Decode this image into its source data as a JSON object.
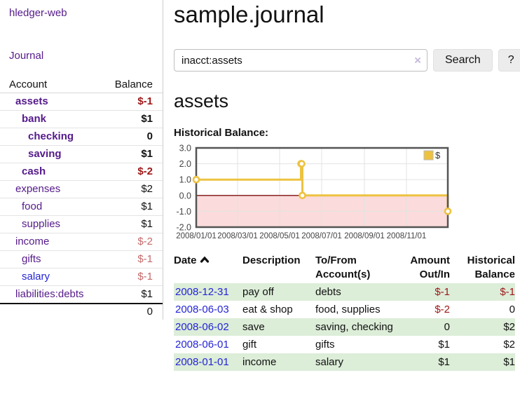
{
  "colors": {
    "link_purple": "#551a8b",
    "link_blue": "#2424d6",
    "negative_strong": "#9d1717",
    "negative_faded": "#c46a6a",
    "stripe_green": "#dcedd8",
    "chart_line": "#edc240",
    "chart_marker_fill": "#ffffff",
    "chart_negative_fill": "#fbdbdb",
    "chart_zero_line": "#7e1010",
    "chart_border": "#545454",
    "grid_line": "#e3e3e3",
    "axis_text": "#444444",
    "button_bg": "#ececec"
  },
  "sidebar": {
    "app_title": "hledger-web",
    "journal_link": "Journal",
    "accounts_table": {
      "headers": {
        "account": "Account",
        "balance": "Balance"
      },
      "rows": [
        {
          "name": "assets",
          "balance": "$-1",
          "depth": 1,
          "bold": true,
          "visited": true
        },
        {
          "name": "bank",
          "balance": "$1",
          "depth": 2,
          "bold": true,
          "visited": true
        },
        {
          "name": "checking",
          "balance": "0",
          "depth": 3,
          "bold": true,
          "visited": true
        },
        {
          "name": "saving",
          "balance": "$1",
          "depth": 3,
          "bold": true,
          "visited": true
        },
        {
          "name": "cash",
          "balance": "$-2",
          "depth": 2,
          "bold": true,
          "visited": true
        },
        {
          "name": "expenses",
          "balance": "$2",
          "depth": 1,
          "bold": false,
          "visited": true
        },
        {
          "name": "food",
          "balance": "$1",
          "depth": 2,
          "bold": false,
          "visited": true
        },
        {
          "name": "supplies",
          "balance": "$1",
          "depth": 2,
          "bold": false,
          "visited": true
        },
        {
          "name": "income",
          "balance": "$-2",
          "depth": 1,
          "bold": false,
          "visited": true
        },
        {
          "name": "gifts",
          "balance": "$-1",
          "depth": 2,
          "bold": false,
          "visited": true
        },
        {
          "name": "salary",
          "balance": "$-1",
          "depth": 2,
          "bold": false,
          "visited": false
        },
        {
          "name": "liabilities:debts",
          "balance": "$1",
          "depth": 1,
          "bold": false,
          "visited": true
        }
      ],
      "total": "0"
    }
  },
  "header": {
    "title": "sample.journal"
  },
  "search": {
    "value": "inacct:assets",
    "clear_icon_glyph": "×",
    "search_button_label": "Search",
    "help_button_label": "?"
  },
  "account_view": {
    "heading": "assets",
    "chart_title": "Historical Balance:"
  },
  "chart_data": {
    "type": "line",
    "title": "Historical Balance",
    "series": [
      {
        "name": "$",
        "steps": true,
        "points": [
          {
            "date": "2008/01/01",
            "day": 0,
            "value": 1.0
          },
          {
            "date": "2008/06/01",
            "day": 152,
            "value": 2.0
          },
          {
            "date": "2008/06/02",
            "day": 153,
            "value": 2.0
          },
          {
            "date": "2008/06/03",
            "day": 154,
            "value": 0.0
          },
          {
            "date": "2008/12/31",
            "day": 365,
            "value": -1.0
          }
        ]
      }
    ],
    "x_ticks": [
      {
        "label": "2008/01/01",
        "day": 0
      },
      {
        "label": "2008/03/01",
        "day": 60
      },
      {
        "label": "2008/05/01",
        "day": 121
      },
      {
        "label": "2008/07/01",
        "day": 182
      },
      {
        "label": "2008/09/01",
        "day": 244
      },
      {
        "label": "2008/11/01",
        "day": 305
      }
    ],
    "y_ticks": [
      3.0,
      2.0,
      1.0,
      0.0,
      -1.0,
      -2.0
    ],
    "ylim": [
      -2.0,
      3.0
    ],
    "xlim_days": [
      0,
      365
    ],
    "grid": true,
    "negative_region_shaded": true,
    "legend": {
      "label": "$",
      "position": "top-right"
    }
  },
  "register": {
    "headers": [
      {
        "lines": [
          "Date"
        ],
        "align": "left",
        "sorted": "asc"
      },
      {
        "lines": [
          "Description"
        ],
        "align": "left"
      },
      {
        "lines": [
          "To/From",
          "Account(s)"
        ],
        "align": "left"
      },
      {
        "lines": [
          "Amount",
          "Out/In"
        ],
        "align": "right"
      },
      {
        "lines": [
          "Historical",
          "Balance"
        ],
        "align": "right"
      }
    ],
    "rows": [
      {
        "date": "2008-12-31",
        "description": "pay off",
        "accounts": "debts",
        "amount": "$-1",
        "balance": "$-1"
      },
      {
        "date": "2008-06-03",
        "description": "eat & shop",
        "accounts": "food, supplies",
        "amount": "$-2",
        "balance": "0"
      },
      {
        "date": "2008-06-02",
        "description": "save",
        "accounts": "saving, checking",
        "amount": "0",
        "balance": "$2"
      },
      {
        "date": "2008-06-01",
        "description": "gift",
        "accounts": "gifts",
        "amount": "$1",
        "balance": "$2"
      },
      {
        "date": "2008-01-01",
        "description": "income",
        "accounts": "salary",
        "amount": "$1",
        "balance": "$1"
      }
    ]
  }
}
